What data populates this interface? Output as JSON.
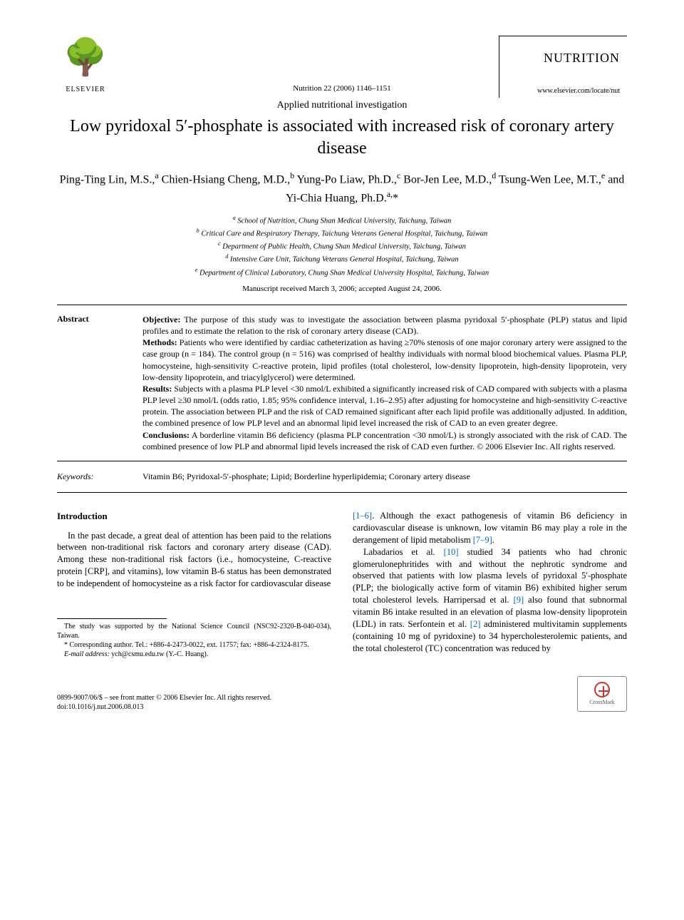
{
  "publisher": {
    "name": "ELSEVIER",
    "tree_glyph": "🌳"
  },
  "journal": {
    "name": "NUTRITION",
    "homepage": "www.elsevier.com/locate/nut",
    "citation": "Nutrition 22 (2006) 1146–1151"
  },
  "article": {
    "type": "Applied nutritional investigation",
    "title": "Low pyridoxal 5′-phosphate is associated with increased risk of coronary artery disease",
    "authors_html": "Ping-Ting Lin, M.S.,<sup>a</sup> Chien-Hsiang Cheng, M.D.,<sup>b</sup> Yung-Po Liaw, Ph.D.,<sup>c</sup> Bor-Jen Lee, M.D.,<sup>d</sup> Tsung-Wen Lee, M.T.,<sup>e</sup> and Yi-Chia Huang, Ph.D.<sup>a,</sup>*",
    "affiliations": [
      "a School of Nutrition, Chung Shan Medical University, Taichung, Taiwan",
      "b Critical Care and Respiratory Therapy, Taichung Veterans General Hospital, Taichung, Taiwan",
      "c Department of Public Health, Chung Shan Medical University, Taichung, Taiwan",
      "d Intensive Care Unit, Taichung Veterans General Hospital, Taichung, Taiwan",
      "e Department of Clinical Laboratory, Chung Shan Medical University Hospital, Taichung, Taiwan"
    ],
    "manuscript_date": "Manuscript received March 3, 2006; accepted August 24, 2006."
  },
  "abstract": {
    "label": "Abstract",
    "objective_label": "Objective:",
    "objective": " The purpose of this study was to investigate the association between plasma pyridoxal 5′-phosphate (PLP) status and lipid profiles and to estimate the relation to the risk of coronary artery disease (CAD).",
    "methods_label": "Methods:",
    "methods": " Patients who were identified by cardiac catheterization as having ≥70% stenosis of one major coronary artery were assigned to the case group (n = 184). The control group (n = 516) was comprised of healthy individuals with normal blood biochemical values. Plasma PLP, homocysteine, high-sensitivity C-reactive protein, lipid profiles (total cholesterol, low-density lipoprotein, high-density lipoprotein, very low-density lipoprotein, and triacylglycerol) were determined.",
    "results_label": "Results:",
    "results": " Subjects with a plasma PLP level <30 nmol/L exhibited a significantly increased risk of CAD compared with subjects with a plasma PLP level ≥30 nmol/L (odds ratio, 1.85; 95% confidence interval, 1.16–2.95) after adjusting for homocysteine and high-sensitivity C-reactive protein. The association between PLP and the risk of CAD remained significant after each lipid profile was additionally adjusted. In addition, the combined presence of low PLP level and an abnormal lipid level increased the risk of CAD to an even greater degree.",
    "conclusions_label": "Conclusions:",
    "conclusions": " A borderline vitamin B6 deficiency (plasma PLP concentration <30 nmol/L) is strongly associated with the risk of CAD. The combined presence of low PLP and abnormal lipid levels increased the risk of CAD even further.   © 2006 Elsevier Inc. All rights reserved."
  },
  "keywords": {
    "label": "Keywords:",
    "text": "Vitamin B6; Pyridoxal-5′-phosphate; Lipid; Borderline hyperlipidemia; Coronary artery disease"
  },
  "body": {
    "intro_heading": "Introduction",
    "left_col_p1": "In the past decade, a great deal of attention has been paid to the relations between non-traditional risk factors and coronary artery disease (CAD). Among these non-traditional risk factors (i.e., homocysteine, C-reactive protein [CRP], and vitamins), low vitamin B-6 status has been demonstrated to be independent of homocysteine as a risk factor for cardiovascular disease",
    "right_col_p1_pre": "",
    "right_col_ref1": "[1–6]",
    "right_col_p1_mid": ". Although the exact pathogenesis of vitamin B6 deficiency in cardiovascular disease is unknown, low vitamin B6 may play a role in the derangement of lipid metabolism ",
    "right_col_ref2": "[7–9]",
    "right_col_p1_end": ".",
    "right_col_p2_pre": "Labadarios et al. ",
    "right_col_ref3": "[10]",
    "right_col_p2_mid": " studied 34 patients who had chronic glomerulonephritides with and without the nephrotic syndrome and observed that patients with low plasma levels of pyridoxal 5′-phosphate (PLP; the biologically active form of vitamin B6) exhibited higher serum total cholesterol levels. Harripersad et al. ",
    "right_col_ref4": "[9]",
    "right_col_p2_mid2": " also found that subnormal vitamin B6 intake resulted in an elevation of plasma low-density lipoprotein (LDL) in rats. Serfontein et al. ",
    "right_col_ref5": "[2]",
    "right_col_p2_end": " administered multivitamin supplements (containing 10 mg of pyridoxine) to 34 hypercholesterolemic patients, and the total cholesterol (TC) concentration was reduced by"
  },
  "footnotes": {
    "funding": "The study was supported by the National Science Council (NSC92-2320-B-040-034), Taiwan.",
    "corresponding": "* Corresponding author. Tel.: +886-4-2473-0022, ext. 11757; fax: +886-4-2324-8175.",
    "email_label": "E-mail address:",
    "email": " ych@csmu.edu.tw (Y.-C. Huang)."
  },
  "footer": {
    "copyright": "0899-9007/06/$ – see front matter © 2006 Elsevier Inc. All rights reserved.",
    "doi": "doi:10.1016/j.nut.2006.08.013",
    "crossmark": "CrossMark"
  },
  "colors": {
    "text": "#000000",
    "link": "#0066cc",
    "background": "#ffffff",
    "rule": "#000000"
  },
  "typography": {
    "base_font": "Times New Roman",
    "title_size_pt": 18,
    "body_size_pt": 9.5,
    "abstract_size_pt": 9
  }
}
